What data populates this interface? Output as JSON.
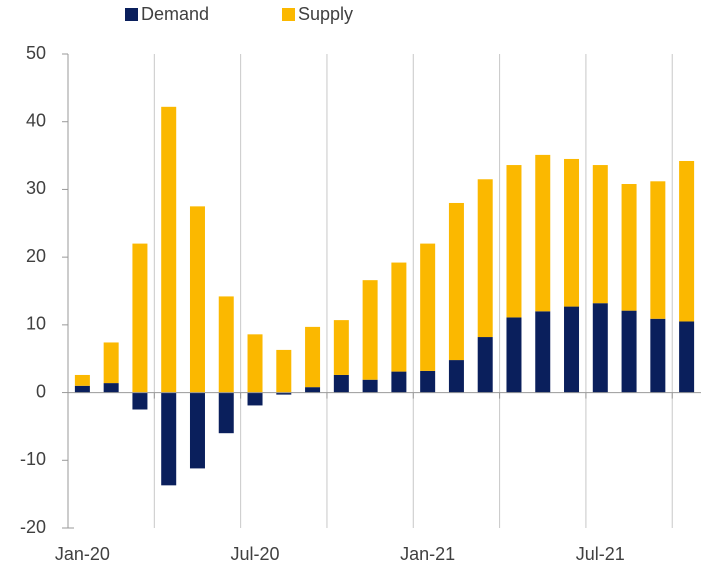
{
  "chart_data": {
    "type": "stacked_bar",
    "categories": [
      "Jan-20",
      null,
      null,
      null,
      null,
      null,
      "Jul-20",
      null,
      null,
      null,
      null,
      null,
      "Jan-21",
      null,
      null,
      null,
      null,
      null,
      "Jul-21",
      null,
      null,
      null
    ],
    "series": [
      {
        "name": "Demand",
        "color": "#0a1f5c",
        "values": [
          1.0,
          1.4,
          -2.5,
          -13.7,
          -11.2,
          -6.0,
          -1.9,
          -0.3,
          0.8,
          2.6,
          1.9,
          3.1,
          3.2,
          4.8,
          8.2,
          11.1,
          12.0,
          12.7,
          13.2,
          12.1,
          10.9,
          10.5
        ]
      },
      {
        "name": "Supply",
        "color": "#fbb800",
        "values": [
          1.6,
          6.0,
          22.0,
          42.2,
          27.5,
          14.2,
          8.6,
          6.3,
          8.9,
          8.1,
          14.7,
          16.1,
          18.8,
          23.2,
          23.3,
          22.5,
          23.1,
          21.8,
          20.4,
          18.7,
          20.3,
          23.7
        ]
      }
    ],
    "ylim": [
      -20,
      50
    ],
    "yticks": [
      -20,
      -10,
      0,
      10,
      20,
      30,
      40,
      50
    ],
    "legend": "top"
  }
}
